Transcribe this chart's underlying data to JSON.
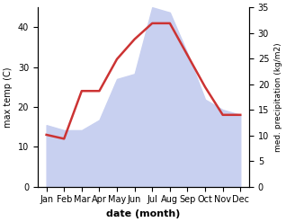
{
  "months": [
    "Jan",
    "Feb",
    "Mar",
    "Apr",
    "May",
    "Jun",
    "Jul",
    "Aug",
    "Sep",
    "Oct",
    "Nov",
    "Dec"
  ],
  "month_indices": [
    1,
    2,
    3,
    4,
    5,
    6,
    7,
    8,
    9,
    10,
    11,
    12
  ],
  "temp_max": [
    13,
    12,
    24,
    24,
    32,
    37,
    41,
    41,
    33,
    25,
    18,
    18
  ],
  "precipitation": [
    12,
    11,
    11,
    13,
    21,
    22,
    35,
    34,
    26,
    17,
    15,
    14
  ],
  "temp_ylim": [
    0,
    45
  ],
  "precip_ylim": [
    0,
    35
  ],
  "temp_yticks": [
    0,
    10,
    20,
    30,
    40
  ],
  "precip_yticks": [
    0,
    5,
    10,
    15,
    20,
    25,
    30,
    35
  ],
  "temp_color": "#cc3333",
  "precip_fill_color": "#c8d0f0",
  "ylabel_left": "max temp (C)",
  "ylabel_right": "med. precipitation (kg/m2)",
  "xlabel": "date (month)",
  "background_color": "#ffffff",
  "line_width": 1.8,
  "xlim": [
    0.5,
    12.5
  ]
}
